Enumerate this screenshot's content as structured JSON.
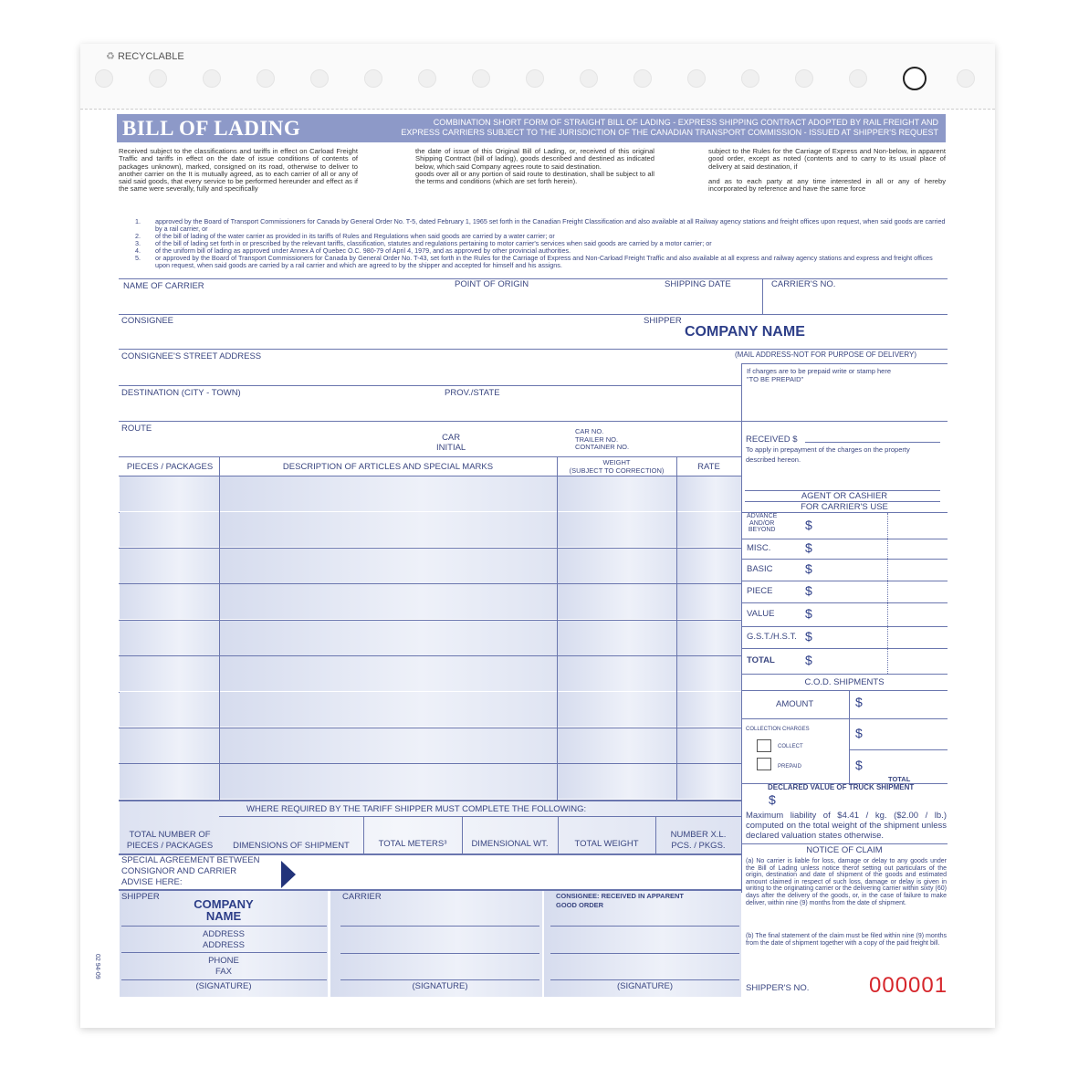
{
  "strip": {
    "recyclable": "RECYCLABLE",
    "hole_count": 17
  },
  "header": {
    "title": "BILL OF LADING",
    "subtitle_line1": "COMBINATION SHORT FORM OF STRAIGHT BILL OF LADING - EXPRESS SHIPPING CONTRACT ADOPTED BY RAIL FREIGHT AND",
    "subtitle_line2": "EXPRESS CARRIERS SUBJECT TO THE JURISDICTION OF THE CANADIAN TRANSPORT COMMISSION - ISSUED AT SHIPPER'S REQUEST"
  },
  "terms": {
    "col1": "Received  subject to the classifications and tariffs in effect on Carload Freight Traffic and tariffs in effect on the date of issue conditions of contents of packages unknown), marked, consigned on its road, otherwise to deliver to another carrier on the It is mutually agreed, as to each carrier of all or any of said said goods, that every service to be performed hereunder and effect as if the same were severally, fully and specifically",
    "col2": "the date of issue of this Original Bill of Lading, or, received of this original Shipping Contract (bill of lading), goods described and destined as indicated below, which said Company agrees route to said destination.\ngoods over all or any portion of said route to destination, shall be subject to all the terms and conditions (which are set forth herein).",
    "col3": "subject to the Rules for the Carriage of Express and Non-below, in apparent good order, except as noted (contents and to carry to its usual place of delivery at said destination, if\n\nand as to each party at any time interested in all or any of hereby incorporated by reference and have the same force",
    "list": [
      {
        "n": "1.",
        "t": "approved by the Board of Transport Commissioners for Canada by General Order No. T-5, dated February 1, 1965 set forth in the Canadian Freight Classification and also available at all Railway agency stations and freight offices upon request, when said goods are carried by a rail carrier, or"
      },
      {
        "n": "2.",
        "t": "of the bill of lading of the water carrier as provided in its tariffs of Rules and Regulations when said goods are carried by a water carrier; or"
      },
      {
        "n": "3.",
        "t": "of the bill of lading set forth in or prescribed by the relevant tariffs, classification, statutes and regulations pertaining to motor carrier's services when said goods are carried by a motor carrier; or"
      },
      {
        "n": "4.",
        "t": "of the uniform bill of lading as approved under Annex A of Quebec O.C. 980-79 of April 4, 1979, and as approved by other provincial authorities."
      },
      {
        "n": "5.",
        "t": "or approved by the Board of Transport Commissioners for Canada by General Order No. T-43, set forth in the Rules for the Carriage of Express and Non-Carload Freight Traffic and also available at all express and railway agency stations and express and freight offices upon request, when said goods are carried by a rail carrier and which are agreed to by the shipper and accepted for himself and his assigns."
      }
    ]
  },
  "form": {
    "name_of_carrier": "NAME OF CARRIER",
    "point_of_origin": "POINT OF ORIGIN",
    "shipping_date": "SHIPPING DATE",
    "carriers_no": "CARRIER'S NO.",
    "consignee": "CONSIGNEE",
    "shipper": "SHIPPER",
    "company_name": "COMPANY NAME",
    "street": "CONSIGNEE'S STREET ADDRESS",
    "mail_note": "(MAIL ADDRESS-NOT FOR PURPOSE OF DELIVERY)",
    "destination": "DESTINATION (CITY - TOWN)",
    "prov": "PROV./STATE",
    "route": "ROUTE",
    "car_initial": "CAR\nINITIAL",
    "car_no": "CAR NO.\nTRAILER NO.\nCONTAINER NO."
  },
  "table": {
    "headers": [
      "PIECES / PACKAGES",
      "DESCRIPTION OF ARTICLES AND SPECIAL MARKS",
      "WEIGHT\n(SUBJECT TO CORRECTION)",
      "RATE"
    ],
    "row_count": 9
  },
  "totals": {
    "where_required": "WHERE REQUIRED BY THE TARIFF SHIPPER MUST COMPLETE THE FOLLOWING:",
    "total_pieces": "TOTAL NUMBER OF\nPIECES / PACKAGES",
    "dimensions": "DIMENSIONS OF SHIPMENT",
    "total_meters": "TOTAL METERS³",
    "dimensional_wt": "DIMENSIONAL WT.",
    "total_weight": "TOTAL WEIGHT",
    "number_xl": "NUMBER X.L.\nPCS. / PKGS."
  },
  "special": {
    "label": "SPECIAL AGREEMENT BETWEEN\nCONSIGNOR AND CARRIER\nADVISE HERE:"
  },
  "signatures": {
    "shipper": "SHIPPER",
    "company": "COMPANY\nNAME",
    "address": "ADDRESS\nADDRESS",
    "phone": "PHONE\nFAX",
    "signature": "(SIGNATURE)",
    "carrier": "CARRIER",
    "consignee": "CONSIGNEE: RECEIVED IN APPARENT\nGOOD ORDER",
    "form_code": "02 94-09"
  },
  "right": {
    "prepaid": "If charges are to be prepaid write or stamp here\n\"TO BE PREPAID\"",
    "received": "RECEIVED  $",
    "received_note": "To apply in prepayment of the charges on the property\ndescribed hereon.",
    "agent": "AGENT OR CASHIER",
    "carriers_use": "FOR CARRIER'S USE",
    "charges": [
      {
        "label": "ADVANCE\nAND/OR\nBEYOND"
      },
      {
        "label": "MISC."
      },
      {
        "label": "BASIC"
      },
      {
        "label": "PIECE"
      },
      {
        "label": "VALUE"
      },
      {
        "label": "G.S.T./H.S.T."
      },
      {
        "label": "TOTAL"
      }
    ],
    "currency": "$",
    "cod": "C.O.D. SHIPMENTS",
    "amount": "AMOUNT",
    "collection": "COLLECTION CHARGES",
    "collect": "COLLECT",
    "prepaid_opt": "PREPAID",
    "total": "TOTAL",
    "declared": "DECLARED VALUE OF TRUCK SHIPMENT",
    "liability": "Maximum liability of $4.41 / kg. ($2.00 / lb.) computed on the total weight of the shipment unless declared valuation states otherwise.",
    "notice_title": "NOTICE OF CLAIM",
    "notice_a": "(a) No carrier is liable for loss, damage or delay to any goods under the Bill of Lading unless notice therof setting out particulars of the origin, destination and date of shipment of the goods and estimated amount claimed in respect of such loss, damage or delay is given in writing to the originating carrier or the delivering carrier within sixty (60) days after the delivery of the goods, or, in the case of failure to make deliver, within nine (9) months from the date of shipment.",
    "notice_b": "(b) The final statement of the claim must be filed within nine (9) months from the date of shipment together with a copy of the paid freight bill.",
    "shippers_no": "SHIPPER'S NO.",
    "serial": "000001"
  },
  "colors": {
    "band": "#8d99c8",
    "text": "#3a4680",
    "serial": "#d6262b"
  }
}
